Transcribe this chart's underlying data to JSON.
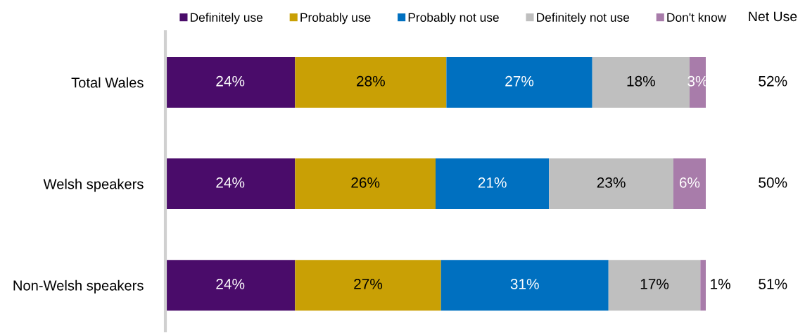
{
  "chart_data": {
    "type": "bar",
    "orientation": "horizontal",
    "stacked": true,
    "categories": [
      "Total Wales",
      "Welsh speakers",
      "Non-Welsh speakers"
    ],
    "series": [
      {
        "name": "Definitely use",
        "color": "#4a0c6a",
        "values": [
          24,
          24,
          24
        ],
        "value_labels": [
          "24%",
          "24%",
          "24%"
        ]
      },
      {
        "name": "Probably use",
        "color": "#c9a005",
        "values": [
          28,
          26,
          27
        ],
        "value_labels": [
          "28%",
          "26%",
          "27%"
        ]
      },
      {
        "name": "Probably not use",
        "color": "#0070c0",
        "values": [
          27,
          21,
          31
        ],
        "value_labels": [
          "27%",
          "21%",
          "31%"
        ]
      },
      {
        "name": "Definitely not use",
        "color": "#bfbfbf",
        "values": [
          18,
          23,
          17
        ],
        "value_labels": [
          "18%",
          "23%",
          "17%"
        ]
      },
      {
        "name": "Don't know",
        "color": "#a87caa",
        "values": [
          3,
          6,
          1
        ],
        "value_labels": [
          "3%",
          "6%",
          "1%"
        ]
      }
    ],
    "xlim": [
      0,
      100
    ],
    "tick_labels": "y",
    "legend": "top",
    "annotations": [
      "Net Use",
      "52%",
      "50%",
      "51%"
    ]
  }
}
